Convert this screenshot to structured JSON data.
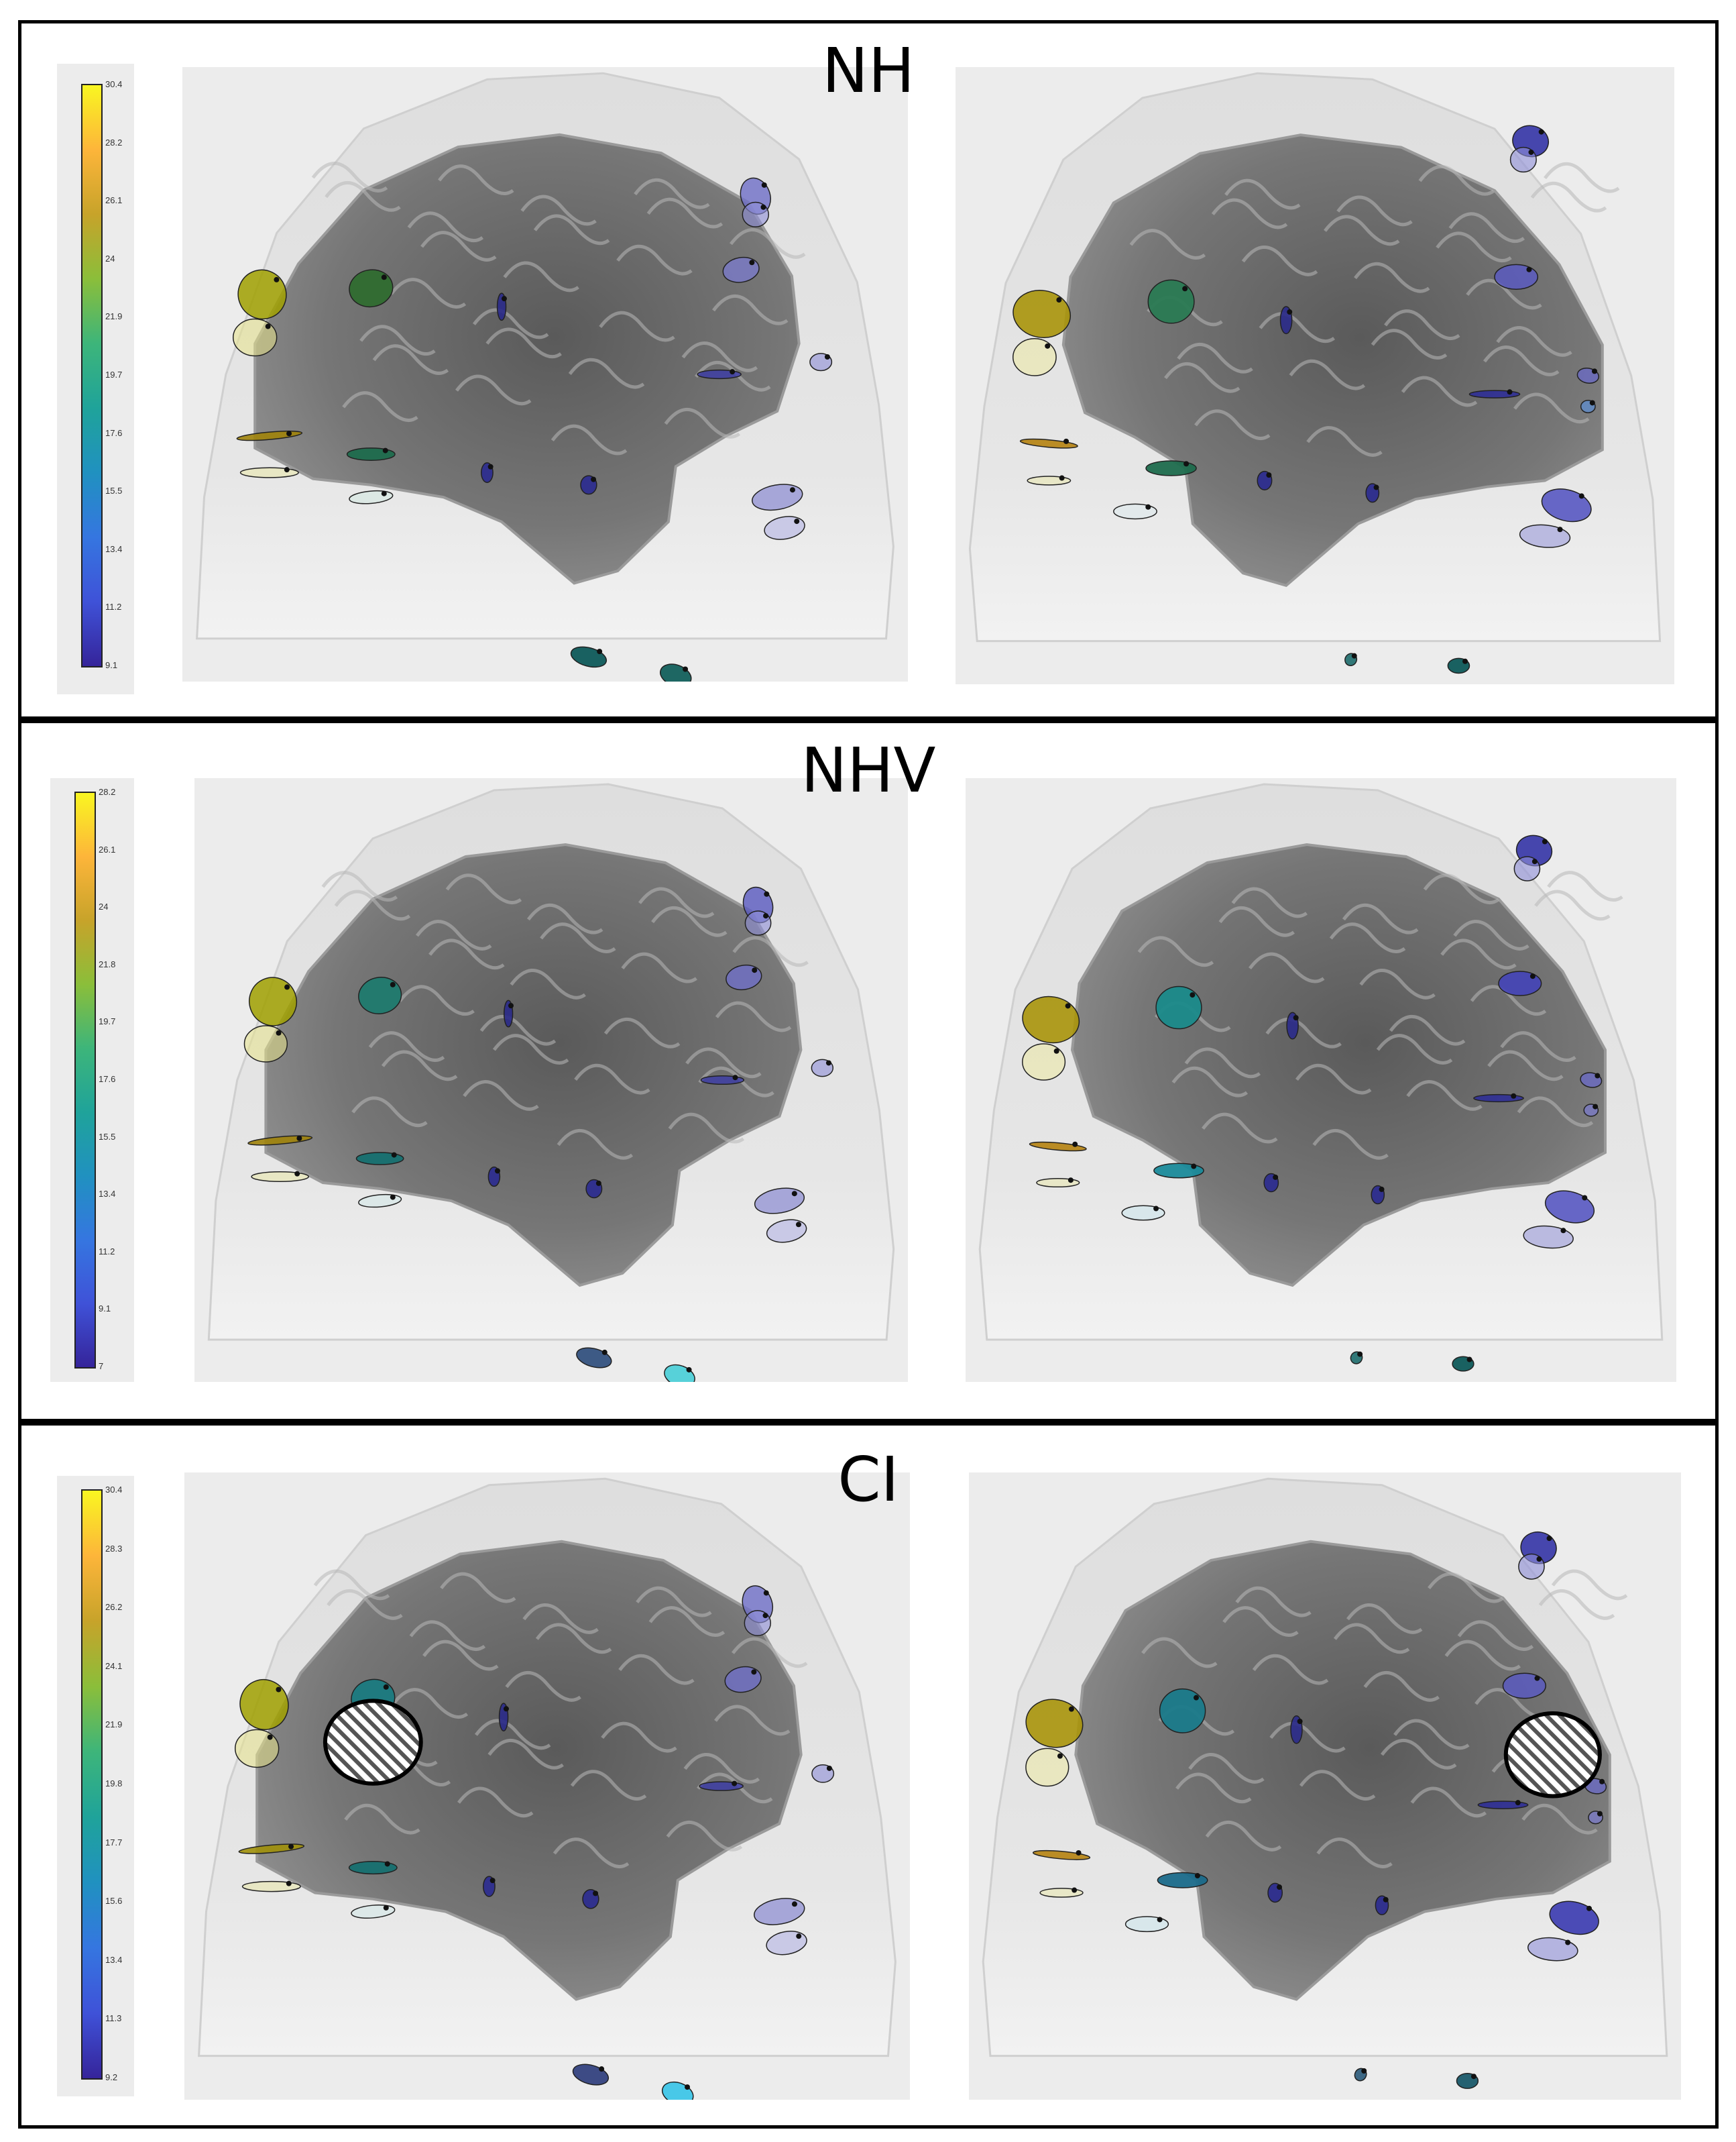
{
  "panels": [
    {
      "title": "NH",
      "colorbar_ticks": [
        "30.4",
        "28.2",
        "26.1",
        "24",
        "21.9",
        "19.7",
        "17.6",
        "15.5",
        "13.4",
        "11.2",
        "9.1"
      ],
      "views": [
        {
          "side": "left",
          "sources": [
            {
              "c": "#a0a000",
              "a": 0.85
            },
            {
              "c": "#e7e38a",
              "a": 0.55
            },
            {
              "c": "#2f6b2f",
              "a": 0.95
            },
            {
              "c": "#2a2a8a",
              "a": 0.9
            },
            {
              "c": "#6f6fc8",
              "a": 0.8
            },
            {
              "c": "#8f8fd8",
              "a": 0.6
            },
            {
              "c": "#7a7ac9",
              "a": 0.8
            },
            {
              "c": "#9a9ad9",
              "a": 0.7
            },
            {
              "c": "#a0830a",
              "a": 0.9
            },
            {
              "c": "#eae7a8",
              "a": 0.55
            },
            {
              "c": "#1d6b4d",
              "a": 0.95
            },
            {
              "c": "#cfe8e0",
              "a": 0.5
            },
            {
              "c": "#2a2a90",
              "a": 0.9
            },
            {
              "c": "#2a2a90",
              "a": 0.9
            },
            {
              "c": "#8a8ad2",
              "a": 0.7
            },
            {
              "c": "#b3b3e3",
              "a": 0.6
            },
            {
              "c": "#0e5a5a",
              "a": 0.95
            },
            {
              "c": "#13605c",
              "a": 0.95
            },
            {
              "c": "#3b3ba8",
              "a": 0.8
            }
          ]
        },
        {
          "side": "right",
          "sources": [
            {
              "c": "#3434a6",
              "a": 0.9
            },
            {
              "c": "#8f8fd8",
              "a": 0.6
            },
            {
              "c": "#5a5ac0",
              "a": 0.85
            },
            {
              "c": "#2a2a8a",
              "a": 0.9
            },
            {
              "c": "#2a7a53",
              "a": 0.95
            },
            {
              "c": "#a8930a",
              "a": 0.9
            },
            {
              "c": "#ece9a2",
              "a": 0.55
            },
            {
              "c": "#2f2f96",
              "a": 0.9
            },
            {
              "c": "#6a6ac8",
              "a": 0.75
            },
            {
              "c": "#5b8fd6",
              "a": 0.7
            },
            {
              "c": "#b5820f",
              "a": 0.9
            },
            {
              "c": "#eae7a8",
              "a": 0.5
            },
            {
              "c": "#1d6b4d",
              "a": 0.95
            },
            {
              "c": "#dbe9ee",
              "a": 0.5
            },
            {
              "c": "#2a2a90",
              "a": 0.9
            },
            {
              "c": "#2a2a90",
              "a": 0.9
            },
            {
              "c": "#4f4fc0",
              "a": 0.85
            },
            {
              "c": "#9a9ad9",
              "a": 0.6
            },
            {
              "c": "#0e5a5a",
              "a": 0.95
            },
            {
              "c": "#1d6b6b",
              "a": 0.9
            }
          ]
        }
      ]
    },
    {
      "title": "NHV",
      "colorbar_ticks": [
        "28.2",
        "26.1",
        "24",
        "21.8",
        "19.7",
        "17.6",
        "15.5",
        "13.4",
        "11.2",
        "9.1",
        "7"
      ],
      "views": [
        {
          "side": "left",
          "sources": [
            {
              "c": "#a0a000",
              "a": 0.85
            },
            {
              "c": "#e7e38a",
              "a": 0.55
            },
            {
              "c": "#1f7a6e",
              "a": 0.95
            },
            {
              "c": "#2a2a8a",
              "a": 0.9
            },
            {
              "c": "#5a5ac0",
              "a": 0.8
            },
            {
              "c": "#8f8fd8",
              "a": 0.6
            },
            {
              "c": "#6f6fc8",
              "a": 0.8
            },
            {
              "c": "#9a9ad9",
              "a": 0.7
            },
            {
              "c": "#a0830a",
              "a": 0.9
            },
            {
              "c": "#eae7a8",
              "a": 0.55
            },
            {
              "c": "#167070",
              "a": 0.95
            },
            {
              "c": "#cfe8e8",
              "a": 0.5
            },
            {
              "c": "#2a2a90",
              "a": 0.9
            },
            {
              "c": "#2a2a90",
              "a": 0.9
            },
            {
              "c": "#8a8ad2",
              "a": 0.7
            },
            {
              "c": "#b3b3e3",
              "a": 0.6
            },
            {
              "c": "#2a4a7a",
              "a": 0.9
            },
            {
              "c": "#4fd0d8",
              "a": 0.95
            },
            {
              "c": "#3b3ba8",
              "a": 0.8
            }
          ]
        },
        {
          "side": "right",
          "sources": [
            {
              "c": "#3434a6",
              "a": 0.9
            },
            {
              "c": "#8f8fd8",
              "a": 0.6
            },
            {
              "c": "#4444b8",
              "a": 0.9
            },
            {
              "c": "#2a2a8a",
              "a": 0.9
            },
            {
              "c": "#1a8a8a",
              "a": 0.95
            },
            {
              "c": "#a8930a",
              "a": 0.9
            },
            {
              "c": "#ece9a2",
              "a": 0.55
            },
            {
              "c": "#2f2f96",
              "a": 0.9
            },
            {
              "c": "#6a6ac8",
              "a": 0.75
            },
            {
              "c": "#7b7bd0",
              "a": 0.7
            },
            {
              "c": "#b5820f",
              "a": 0.9
            },
            {
              "c": "#eae7a8",
              "a": 0.5
            },
            {
              "c": "#1a8a9a",
              "a": 0.95
            },
            {
              "c": "#c8e6ee",
              "a": 0.5
            },
            {
              "c": "#2a2a90",
              "a": 0.9
            },
            {
              "c": "#2a2a90",
              "a": 0.9
            },
            {
              "c": "#4f4fc0",
              "a": 0.85
            },
            {
              "c": "#9a9ad9",
              "a": 0.6
            },
            {
              "c": "#0e5a5a",
              "a": 0.95
            },
            {
              "c": "#1d6b6b",
              "a": 0.9
            }
          ]
        }
      ]
    },
    {
      "title": "CI",
      "colorbar_ticks": [
        "30.4",
        "28.3",
        "26.2",
        "24.1",
        "21.9",
        "19.8",
        "17.7",
        "15.6",
        "13.4",
        "11.3",
        "9.2"
      ],
      "views": [
        {
          "side": "left",
          "sources": [
            {
              "c": "#a0a000",
              "a": 0.85
            },
            {
              "c": "#e7e38a",
              "a": 0.55
            },
            {
              "c": "#1a7a80",
              "a": 0.95
            },
            {
              "c": "#2a2a8a",
              "a": 0.9
            },
            {
              "c": "#6f6fc8",
              "a": 0.8
            },
            {
              "c": "#8f8fd8",
              "a": 0.6
            },
            {
              "c": "#6f6fc8",
              "a": 0.8
            },
            {
              "c": "#9a9ad9",
              "a": 0.7
            },
            {
              "c": "#a0900a",
              "a": 0.9
            },
            {
              "c": "#eae7a8",
              "a": 0.55
            },
            {
              "c": "#167070",
              "a": 0.95
            },
            {
              "c": "#cfe8e8",
              "a": 0.5
            },
            {
              "c": "#2a2a90",
              "a": 0.9
            },
            {
              "c": "#2a2a90",
              "a": 0.9
            },
            {
              "c": "#8a8ad2",
              "a": 0.7
            },
            {
              "c": "#b3b3e3",
              "a": 0.6
            },
            {
              "c": "#2a3a7a",
              "a": 0.9
            },
            {
              "c": "#3fc6e8",
              "a": 0.95
            },
            {
              "c": "#3b3ba8",
              "a": 0.8
            }
          ]
        },
        {
          "side": "right",
          "sources": [
            {
              "c": "#3434a6",
              "a": 0.9
            },
            {
              "c": "#8f8fd8",
              "a": 0.6
            },
            {
              "c": "#5a5ac0",
              "a": 0.85
            },
            {
              "c": "#2a2a8a",
              "a": 0.9
            },
            {
              "c": "#1a7a8a",
              "a": 0.95
            },
            {
              "c": "#a8930a",
              "a": 0.9
            },
            {
              "c": "#ece9a2",
              "a": 0.55
            },
            {
              "c": "#2f2f96",
              "a": 0.9
            },
            {
              "c": "#6a6ac8",
              "a": 0.75
            },
            {
              "c": "#7b7bd0",
              "a": 0.7
            },
            {
              "c": "#b5820f",
              "a": 0.9
            },
            {
              "c": "#eae7a8",
              "a": 0.5
            },
            {
              "c": "#1a6a8a",
              "a": 0.95
            },
            {
              "c": "#c8e6ee",
              "a": 0.5
            },
            {
              "c": "#2a2a90",
              "a": 0.9
            },
            {
              "c": "#2a2a90",
              "a": 0.9
            },
            {
              "c": "#3a3ab0",
              "a": 0.9
            },
            {
              "c": "#8f8fd8",
              "a": 0.6
            },
            {
              "c": "#1a5a6a",
              "a": 0.95
            },
            {
              "c": "#2a5a7a",
              "a": 0.9
            }
          ]
        }
      ],
      "hatched_regions": true
    }
  ],
  "colors": {
    "head": "#e4e4e4",
    "head_edge": "#cfcfcf",
    "brain": "#767676",
    "brain_dark": "#5a5a5a",
    "background": "#ececec",
    "border": "#000000"
  }
}
